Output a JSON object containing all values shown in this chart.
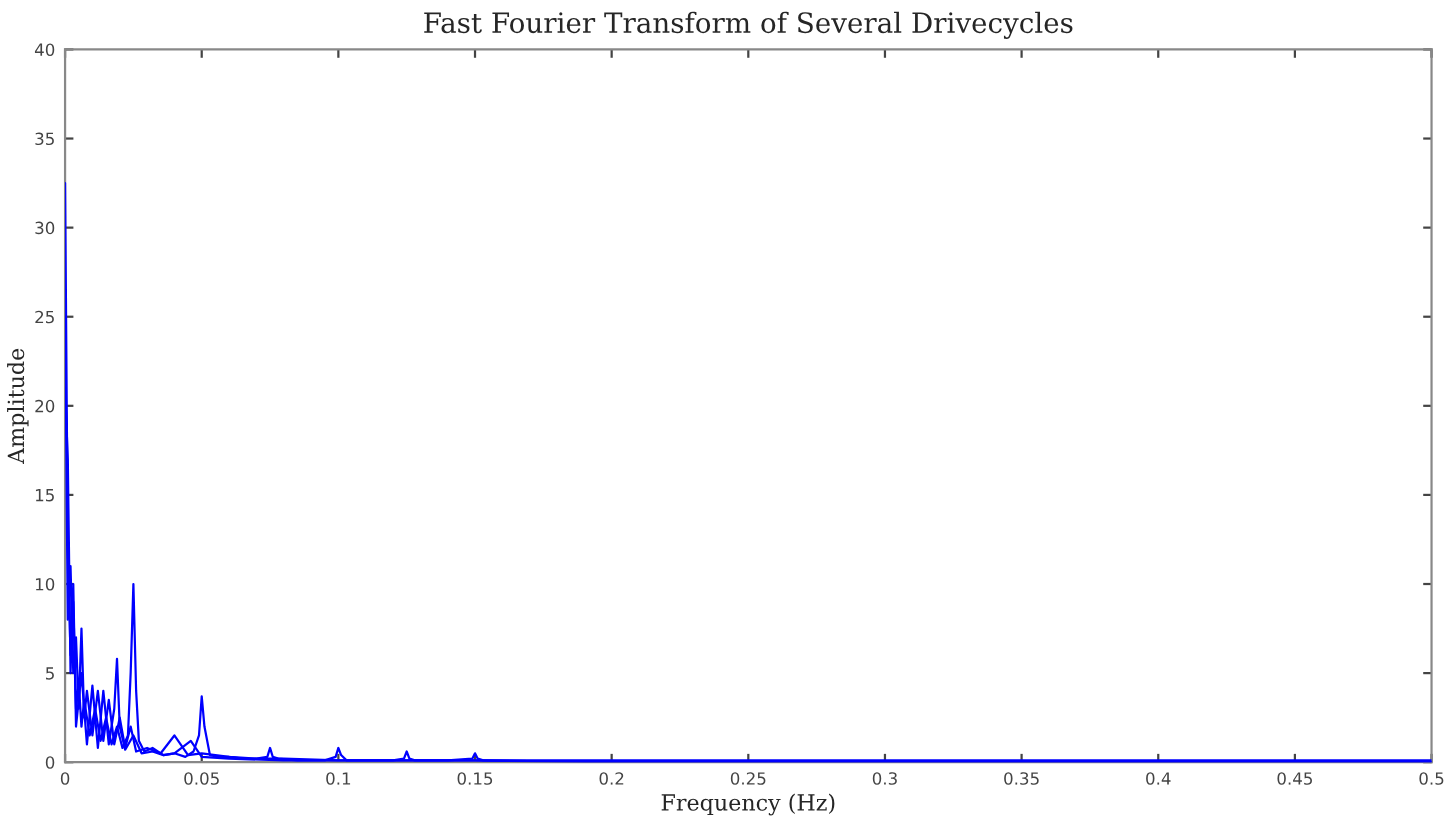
{
  "chart_data": {
    "type": "line",
    "title": "Fast Fourier Transform of Several Drivecycles",
    "xlabel": "Frequency (Hz)",
    "ylabel": "Amplitude",
    "xlim": [
      0,
      0.5
    ],
    "xticks": [
      0,
      0.05,
      0.1,
      0.15,
      0.2,
      0.25,
      0.3,
      0.35,
      0.4,
      0.45,
      0.5
    ],
    "ylim": [
      0,
      40
    ],
    "yticks": [
      0,
      5,
      10,
      15,
      20,
      25,
      30,
      35,
      40
    ],
    "grid": false,
    "series": [
      {
        "color": "#0000ff",
        "x": [
          0,
          0.001,
          0.002,
          0.003,
          0.004,
          0.005,
          0.006,
          0.007,
          0.009,
          0.011,
          0.013,
          0.015,
          0.017,
          0.019,
          0.021,
          0.023,
          0.024,
          0.025,
          0.026,
          0.027,
          0.029,
          0.032,
          0.036,
          0.04,
          0.044,
          0.047,
          0.049,
          0.05,
          0.051,
          0.053,
          0.056,
          0.06,
          0.065,
          0.07,
          0.074,
          0.075,
          0.076,
          0.078,
          0.085,
          0.09,
          0.095,
          0.099,
          0.1,
          0.101,
          0.103,
          0.11,
          0.12,
          0.124,
          0.125,
          0.126,
          0.128,
          0.14,
          0.149,
          0.15,
          0.151,
          0.153,
          0.17,
          0.2,
          0.25,
          0.3,
          0.35,
          0.4,
          0.45,
          0.5
        ],
        "values": [
          32.5,
          12,
          6,
          9,
          3,
          4.5,
          2,
          3.5,
          1.5,
          3,
          1.2,
          2.5,
          1,
          2,
          0.8,
          1.5,
          5,
          10,
          4,
          1.2,
          0.6,
          0.8,
          0.4,
          0.5,
          0.3,
          0.6,
          1.5,
          3.7,
          2,
          0.4,
          0.3,
          0.3,
          0.2,
          0.2,
          0.3,
          0.8,
          0.3,
          0.2,
          0.1,
          0.1,
          0.1,
          0.3,
          0.8,
          0.4,
          0.1,
          0.1,
          0.1,
          0.2,
          0.6,
          0.2,
          0.1,
          0.1,
          0.2,
          0.5,
          0.2,
          0.1,
          0.1,
          0.1,
          0.1,
          0.1,
          0.1,
          0.1,
          0.1,
          0.1
        ]
      },
      {
        "color": "#0000ff",
        "x": [
          0,
          0.001,
          0.002,
          0.003,
          0.004,
          0.005,
          0.006,
          0.007,
          0.008,
          0.01,
          0.012,
          0.014,
          0.016,
          0.018,
          0.02,
          0.022,
          0.024,
          0.026,
          0.03,
          0.035,
          0.04,
          0.045,
          0.05,
          0.06,
          0.07,
          0.08,
          0.1,
          0.15,
          0.2,
          0.3,
          0.4,
          0.5
        ],
        "values": [
          25,
          8,
          11,
          5,
          7,
          3,
          7.5,
          2.5,
          4,
          1.5,
          4,
          1.2,
          3.5,
          1,
          2.5,
          0.8,
          2,
          0.6,
          0.8,
          0.5,
          1.5,
          0.4,
          0.5,
          0.3,
          0.2,
          0.2,
          0.1,
          0.1,
          0,
          0,
          0,
          0
        ]
      },
      {
        "color": "#0000ff",
        "x": [
          0,
          0.001,
          0.002,
          0.003,
          0.004,
          0.006,
          0.008,
          0.01,
          0.012,
          0.014,
          0.016,
          0.018,
          0.019,
          0.02,
          0.022,
          0.025,
          0.028,
          0.032,
          0.036,
          0.04,
          0.046,
          0.05,
          0.06,
          0.08,
          0.1,
          0.15,
          0.2,
          0.3,
          0.4,
          0.5
        ],
        "values": [
          21,
          17,
          5,
          10,
          2,
          5,
          1,
          4.3,
          0.8,
          4,
          1,
          3,
          5.8,
          2,
          0.7,
          1.5,
          0.5,
          0.6,
          0.4,
          0.5,
          1.2,
          0.3,
          0.2,
          0.1,
          0.1,
          0.1,
          0,
          0,
          0,
          0
        ]
      }
    ]
  }
}
